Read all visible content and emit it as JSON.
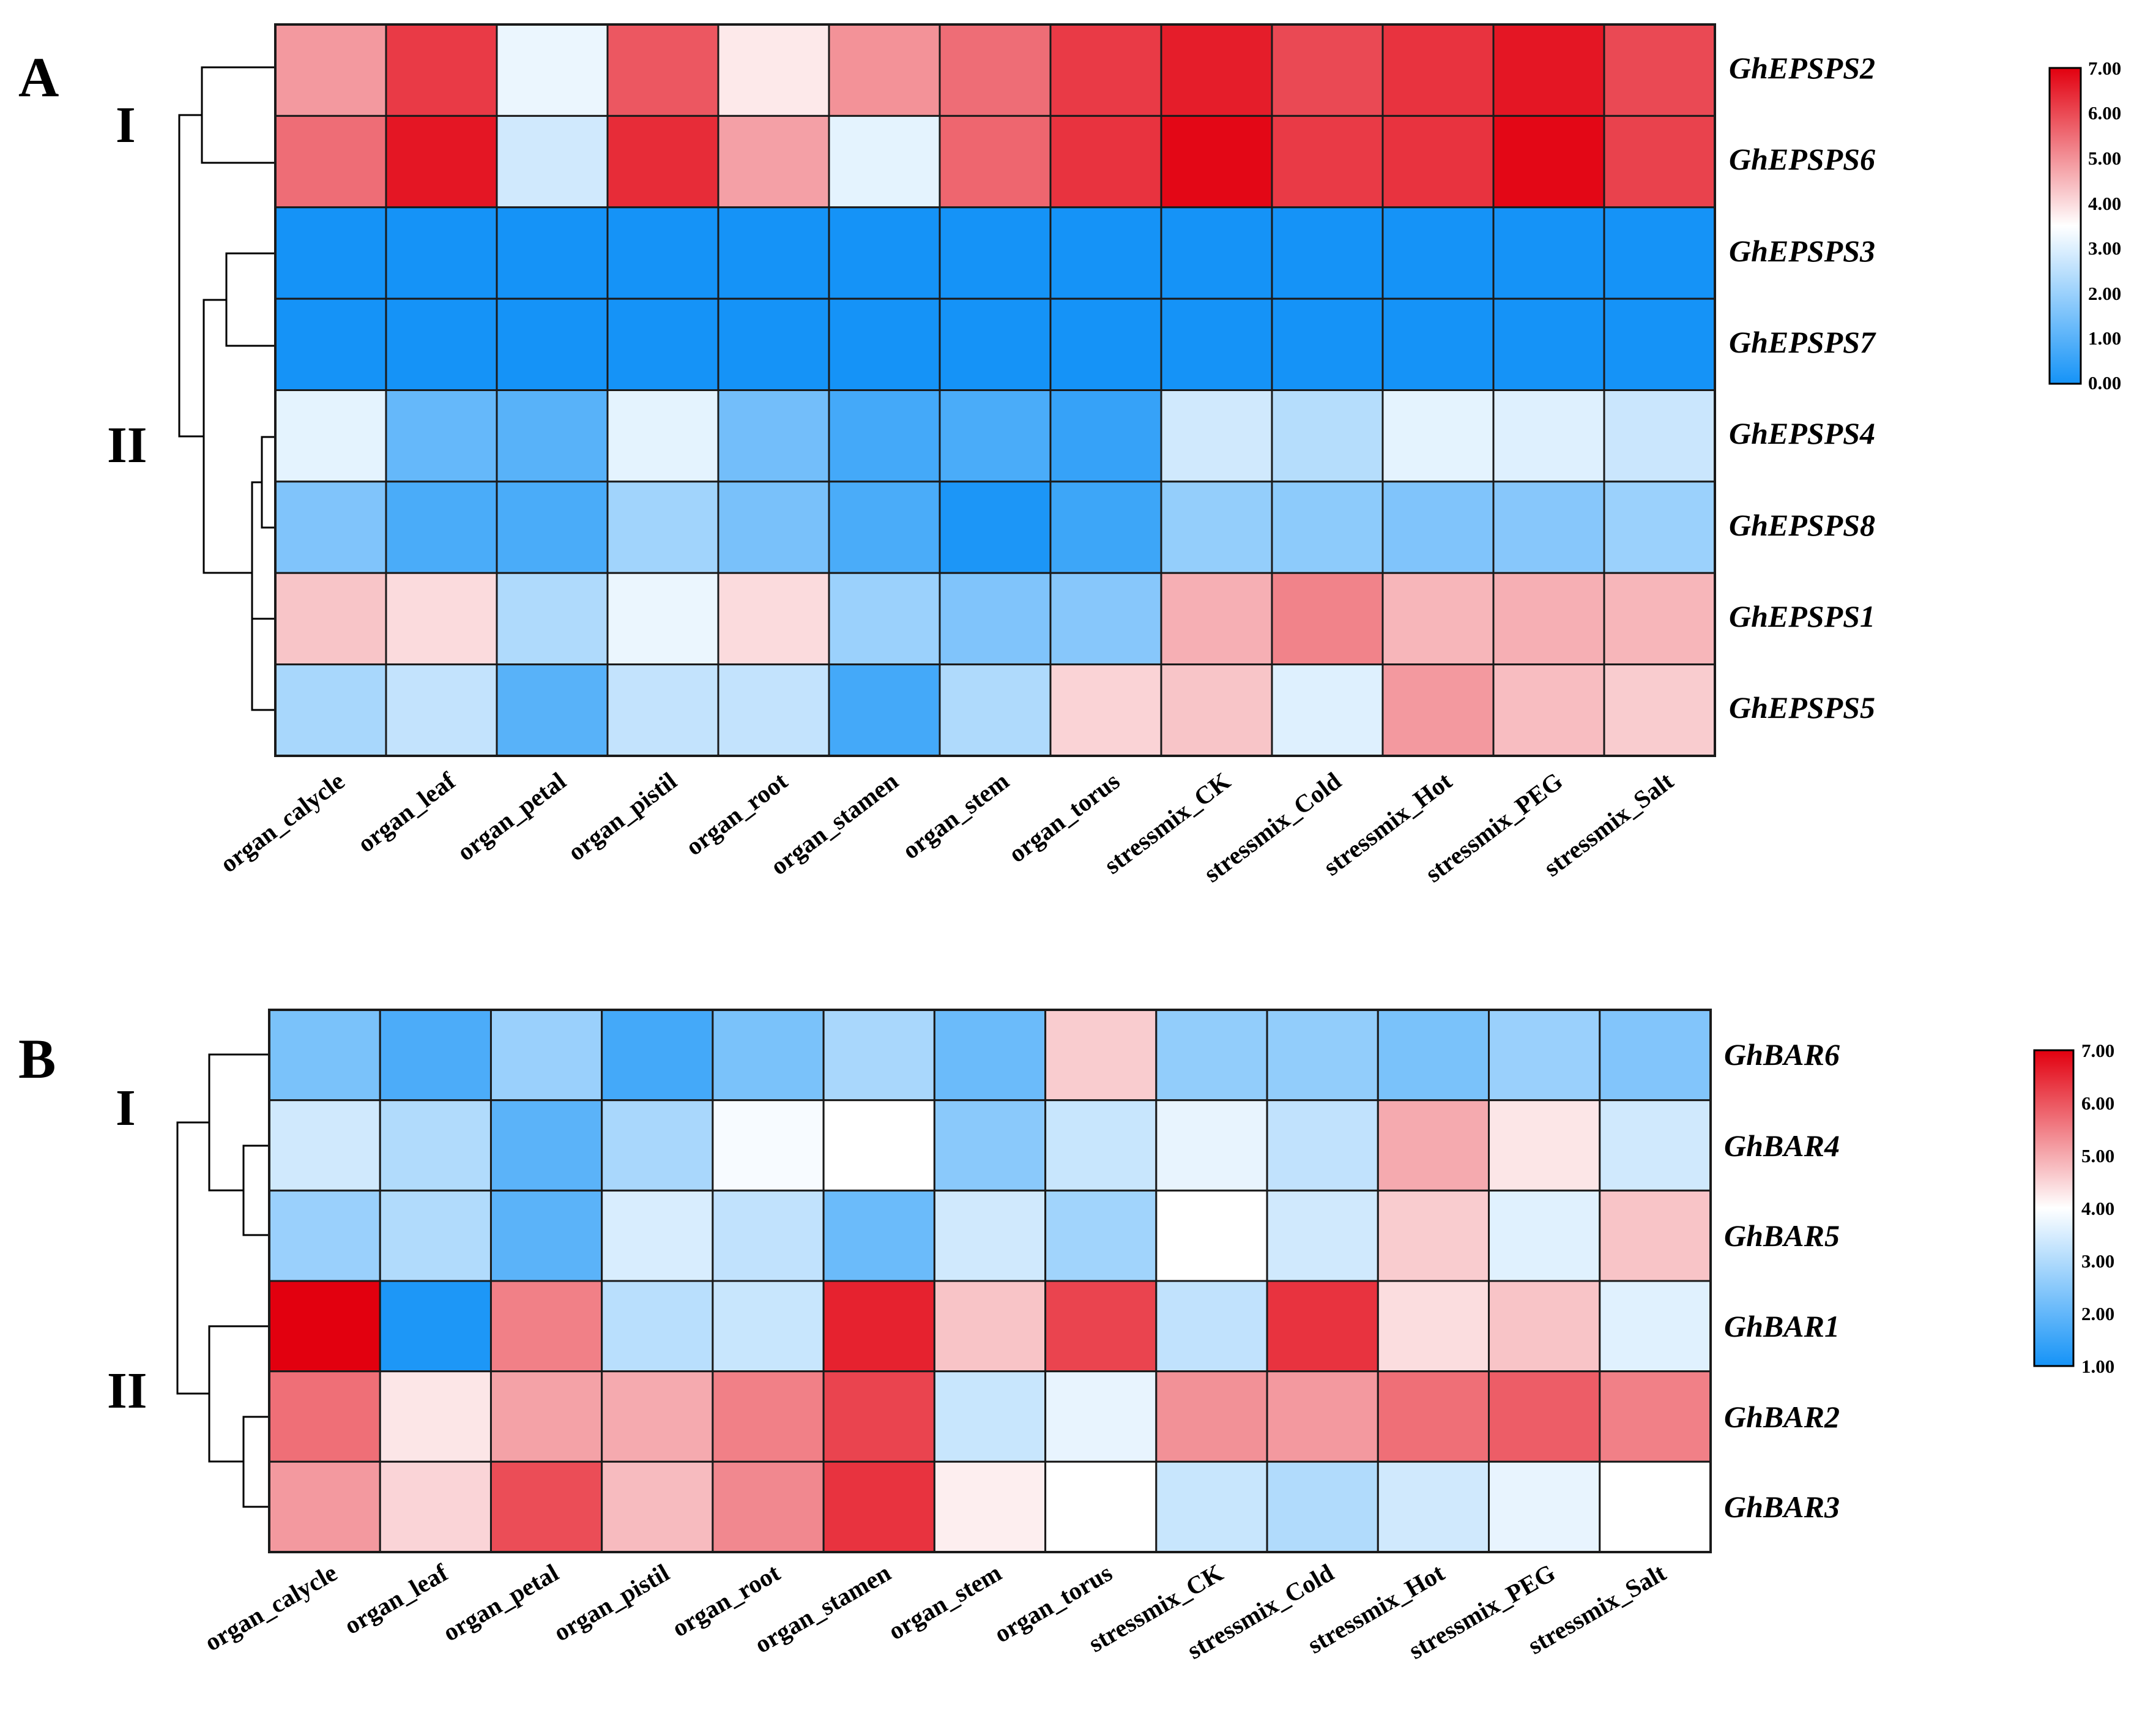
{
  "colors": {
    "low": "#1593f7",
    "mid": "#ffffff",
    "high": "#e2000f",
    "grid": "#1a1a1a",
    "dendrogram": "#000000"
  },
  "chart_data": [
    {
      "type": "heatmap",
      "panel_label": "A",
      "cluster_labels": [
        "I",
        "II"
      ],
      "rows": [
        "GhEPSPS2",
        "GhEPSPS6",
        "GhEPSPS3",
        "GhEPSPS7",
        "GhEPSPS4",
        "GhEPSPS8",
        "GhEPSPS1",
        "GhEPSPS5"
      ],
      "columns": [
        "organ_calycle",
        "organ_leaf",
        "organ_petal",
        "organ_pistil",
        "organ_root",
        "organ_stamen",
        "organ_stem",
        "organ_torus",
        "stressmix_CK",
        "stressmix_Cold",
        "stressmix_Hot",
        "stressmix_PEG",
        "stressmix_Salt"
      ],
      "values": [
        [
          4.9,
          6.2,
          3.2,
          5.8,
          3.8,
          5.0,
          5.5,
          6.2,
          6.6,
          6.0,
          6.3,
          6.7,
          6.0
        ],
        [
          5.5,
          6.7,
          2.8,
          6.4,
          4.8,
          3.1,
          5.6,
          6.3,
          6.9,
          6.2,
          6.3,
          6.9,
          6.1
        ],
        [
          0.0,
          0.0,
          0.0,
          0.0,
          0.0,
          0.0,
          0.0,
          0.0,
          0.0,
          0.0,
          0.0,
          0.0,
          0.0
        ],
        [
          0.0,
          0.0,
          0.0,
          0.0,
          0.0,
          0.0,
          0.0,
          0.0,
          0.0,
          0.0,
          0.0,
          0.0,
          0.0
        ],
        [
          3.1,
          1.2,
          1.0,
          3.1,
          1.4,
          0.7,
          0.8,
          0.5,
          2.8,
          2.4,
          3.1,
          3.0,
          2.7
        ],
        [
          1.6,
          0.8,
          0.8,
          2.1,
          1.5,
          0.8,
          0.1,
          0.6,
          1.9,
          1.8,
          1.6,
          1.7,
          2.0
        ],
        [
          4.3,
          4.0,
          2.3,
          3.2,
          4.0,
          2.0,
          1.6,
          1.7,
          4.6,
          5.2,
          4.5,
          4.6,
          4.5
        ],
        [
          2.2,
          2.6,
          1.0,
          2.6,
          2.6,
          0.7,
          2.3,
          4.1,
          4.3,
          3.0,
          4.9,
          4.4,
          4.2
        ]
      ],
      "colorbar": {
        "min": 0.0,
        "max": 7.0,
        "ticks": [
          "7.00",
          "6.00",
          "5.00",
          "4.00",
          "3.00",
          "2.00",
          "1.00",
          "0.00"
        ]
      }
    },
    {
      "type": "heatmap",
      "panel_label": "B",
      "cluster_labels": [
        "I",
        "II"
      ],
      "rows": [
        "GhBAR6",
        "GhBAR4",
        "GhBAR5",
        "GhBAR1",
        "GhBAR2",
        "GhBAR3"
      ],
      "columns": [
        "organ_calycle",
        "organ_leaf",
        "organ_petal",
        "organ_pistil",
        "organ_root",
        "organ_stamen",
        "organ_stem",
        "organ_torus",
        "stressmix_CK",
        "stressmix_Cold",
        "stressmix_Hot",
        "stressmix_PEG",
        "stressmix_Salt"
      ],
      "values": [
        [
          2.3,
          1.7,
          2.7,
          1.6,
          2.3,
          2.9,
          2.1,
          4.6,
          2.6,
          2.6,
          2.3,
          2.7,
          2.4
        ],
        [
          3.4,
          3.0,
          1.9,
          2.9,
          3.9,
          4.0,
          2.5,
          3.3,
          3.7,
          3.2,
          5.0,
          4.3,
          3.4
        ],
        [
          2.7,
          3.0,
          1.9,
          3.5,
          3.2,
          2.1,
          3.4,
          2.8,
          4.0,
          3.4,
          4.6,
          3.6,
          4.7
        ],
        [
          7.0,
          1.1,
          5.5,
          3.1,
          3.3,
          6.6,
          4.7,
          6.2,
          3.2,
          6.4,
          4.4,
          4.7,
          3.6
        ],
        [
          5.7,
          4.3,
          5.1,
          5.0,
          5.5,
          6.2,
          3.3,
          3.7,
          5.3,
          5.2,
          5.7,
          5.9,
          5.5
        ],
        [
          5.2,
          4.5,
          6.1,
          4.8,
          5.4,
          6.4,
          4.2,
          4.0,
          3.3,
          3.0,
          3.4,
          3.7,
          4.0
        ]
      ],
      "colorbar": {
        "min": 1.0,
        "max": 7.0,
        "ticks": [
          "7.00",
          "6.00",
          "5.00",
          "4.00",
          "3.00",
          "2.00",
          "1.00"
        ]
      }
    }
  ]
}
